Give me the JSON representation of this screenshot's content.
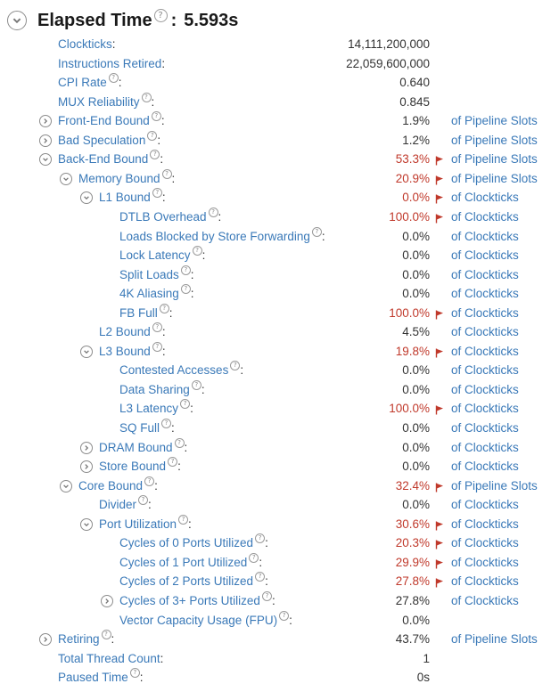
{
  "header": {
    "title": "Elapsed Time",
    "value": "5.593s"
  },
  "help_glyph": "?",
  "colors": {
    "link": "#3a79b8",
    "highlight": "#c0392b",
    "flag": "#c0392b",
    "text": "#333333"
  },
  "rows": [
    {
      "label": "Clockticks",
      "value": "14,111,200,000",
      "unit": "",
      "indent": 0,
      "toggle": "none",
      "help": false,
      "flag": false
    },
    {
      "label": "Instructions Retired",
      "value": "22,059,600,000",
      "unit": "",
      "indent": 0,
      "toggle": "none",
      "help": false,
      "flag": false
    },
    {
      "label": "CPI Rate",
      "value": "0.640",
      "unit": "",
      "indent": 0,
      "toggle": "none",
      "help": true,
      "flag": false
    },
    {
      "label": "MUX Reliability",
      "value": "0.845",
      "unit": "",
      "indent": 0,
      "toggle": "none",
      "help": true,
      "flag": false
    },
    {
      "label": "Front-End Bound",
      "value": "1.9%",
      "unit": "of Pipeline Slots",
      "indent": 0,
      "toggle": "collapsed",
      "help": true,
      "flag": false
    },
    {
      "label": "Bad Speculation",
      "value": "1.2%",
      "unit": "of Pipeline Slots",
      "indent": 0,
      "toggle": "collapsed",
      "help": true,
      "flag": false
    },
    {
      "label": "Back-End Bound",
      "value": "53.3%",
      "unit": "of Pipeline Slots",
      "indent": 0,
      "toggle": "expanded",
      "help": true,
      "flag": true
    },
    {
      "label": "Memory Bound",
      "value": "20.9%",
      "unit": "of Pipeline Slots",
      "indent": 1,
      "toggle": "expanded",
      "help": true,
      "flag": true
    },
    {
      "label": "L1 Bound",
      "value": "0.0%",
      "unit": "of Clockticks",
      "indent": 2,
      "toggle": "expanded",
      "help": true,
      "flag": true
    },
    {
      "label": "DTLB Overhead",
      "value": "100.0%",
      "unit": "of Clockticks",
      "indent": 3,
      "toggle": "none",
      "help": true,
      "flag": true
    },
    {
      "label": "Loads Blocked by Store Forwarding",
      "value": "0.0%",
      "unit": "of Clockticks",
      "indent": 3,
      "toggle": "none",
      "help": true,
      "flag": false
    },
    {
      "label": "Lock Latency",
      "value": "0.0%",
      "unit": "of Clockticks",
      "indent": 3,
      "toggle": "none",
      "help": true,
      "flag": false
    },
    {
      "label": "Split Loads",
      "value": "0.0%",
      "unit": "of Clockticks",
      "indent": 3,
      "toggle": "none",
      "help": true,
      "flag": false
    },
    {
      "label": "4K Aliasing",
      "value": "0.0%",
      "unit": "of Clockticks",
      "indent": 3,
      "toggle": "none",
      "help": true,
      "flag": false
    },
    {
      "label": "FB Full",
      "value": "100.0%",
      "unit": "of Clockticks",
      "indent": 3,
      "toggle": "none",
      "help": true,
      "flag": true
    },
    {
      "label": "L2 Bound",
      "value": "4.5%",
      "unit": "of Clockticks",
      "indent": 2,
      "toggle": "none",
      "help": true,
      "flag": false
    },
    {
      "label": "L3 Bound",
      "value": "19.8%",
      "unit": "of Clockticks",
      "indent": 2,
      "toggle": "expanded",
      "help": true,
      "flag": true
    },
    {
      "label": "Contested Accesses",
      "value": "0.0%",
      "unit": "of Clockticks",
      "indent": 3,
      "toggle": "none",
      "help": true,
      "flag": false
    },
    {
      "label": "Data Sharing",
      "value": "0.0%",
      "unit": "of Clockticks",
      "indent": 3,
      "toggle": "none",
      "help": true,
      "flag": false
    },
    {
      "label": "L3 Latency",
      "value": "100.0%",
      "unit": "of Clockticks",
      "indent": 3,
      "toggle": "none",
      "help": true,
      "flag": true
    },
    {
      "label": "SQ Full",
      "value": "0.0%",
      "unit": "of Clockticks",
      "indent": 3,
      "toggle": "none",
      "help": true,
      "flag": false
    },
    {
      "label": "DRAM Bound",
      "value": "0.0%",
      "unit": "of Clockticks",
      "indent": 2,
      "toggle": "collapsed",
      "help": true,
      "flag": false
    },
    {
      "label": "Store Bound",
      "value": "0.0%",
      "unit": "of Clockticks",
      "indent": 2,
      "toggle": "collapsed",
      "help": true,
      "flag": false
    },
    {
      "label": "Core Bound",
      "value": "32.4%",
      "unit": "of Pipeline Slots",
      "indent": 1,
      "toggle": "expanded",
      "help": true,
      "flag": true
    },
    {
      "label": "Divider",
      "value": "0.0%",
      "unit": "of Clockticks",
      "indent": 2,
      "toggle": "none",
      "help": true,
      "flag": false
    },
    {
      "label": "Port Utilization",
      "value": "30.6%",
      "unit": "of Clockticks",
      "indent": 2,
      "toggle": "expanded",
      "help": true,
      "flag": true
    },
    {
      "label": "Cycles of 0 Ports Utilized",
      "value": "20.3%",
      "unit": "of Clockticks",
      "indent": 3,
      "toggle": "none",
      "help": true,
      "flag": true
    },
    {
      "label": "Cycles of 1 Port Utilized",
      "value": "29.9%",
      "unit": "of Clockticks",
      "indent": 3,
      "toggle": "none",
      "help": true,
      "flag": true
    },
    {
      "label": "Cycles of 2 Ports Utilized",
      "value": "27.8%",
      "unit": "of Clockticks",
      "indent": 3,
      "toggle": "none",
      "help": true,
      "flag": true
    },
    {
      "label": "Cycles of 3+ Ports Utilized",
      "value": "27.8%",
      "unit": "of Clockticks",
      "indent": 3,
      "toggle": "collapsed",
      "help": true,
      "flag": false
    },
    {
      "label": "Vector Capacity Usage (FPU)",
      "value": "0.0%",
      "unit": "",
      "indent": 3,
      "toggle": "none",
      "help": true,
      "flag": false
    },
    {
      "label": "Retiring",
      "value": "43.7%",
      "unit": "of Pipeline Slots",
      "indent": 0,
      "toggle": "collapsed",
      "help": true,
      "flag": false
    },
    {
      "label": "Total Thread Count",
      "value": "1",
      "unit": "",
      "indent": 0,
      "toggle": "none",
      "help": false,
      "flag": false
    },
    {
      "label": "Paused Time",
      "value": "0s",
      "unit": "",
      "indent": 0,
      "toggle": "none",
      "help": true,
      "flag": false
    }
  ]
}
